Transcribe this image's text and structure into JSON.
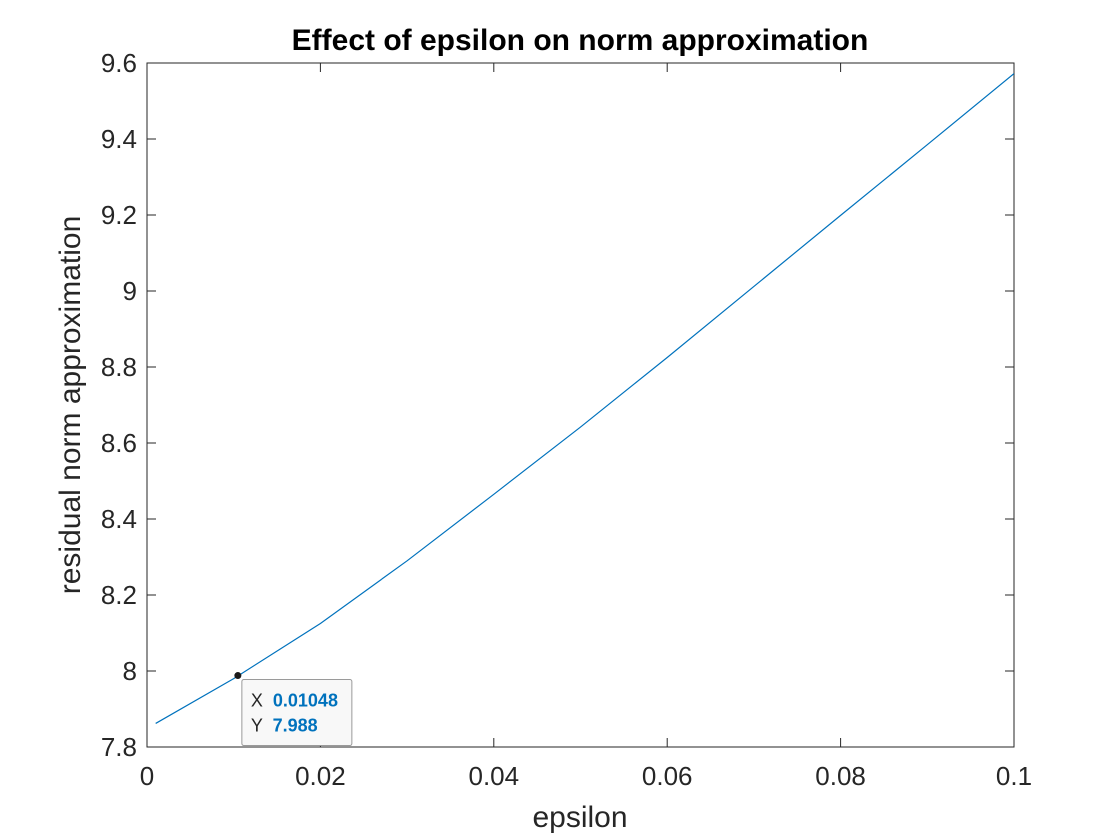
{
  "chart_data": {
    "type": "line",
    "title": "Effect of epsilon on norm approximation",
    "xlabel": "epsilon",
    "ylabel": "residual norm approximation",
    "xlim": [
      0,
      0.1
    ],
    "ylim": [
      7.8,
      9.6
    ],
    "xticks": [
      0,
      0.02,
      0.04,
      0.06,
      0.08,
      0.1
    ],
    "xtick_labels": [
      "0",
      "0.02",
      "0.04",
      "0.06",
      "0.08",
      "0.1"
    ],
    "yticks": [
      7.8,
      8.0,
      8.2,
      8.4,
      8.6,
      8.8,
      9.0,
      9.2,
      9.4,
      9.6
    ],
    "ytick_labels": [
      "7.8",
      "8",
      "8.2",
      "8.4",
      "8.6",
      "8.8",
      "9",
      "9.2",
      "9.4",
      "9.6"
    ],
    "grid": false,
    "line_color": "#0072BD",
    "series": [
      {
        "x": [
          0.001,
          0.01,
          0.02,
          0.03,
          0.04,
          0.05,
          0.06,
          0.07,
          0.08,
          0.09,
          0.1
        ],
        "y": [
          7.862,
          7.98,
          8.125,
          8.29,
          8.465,
          8.642,
          8.825,
          9.012,
          9.199,
          9.385,
          9.572
        ]
      }
    ],
    "datatip": {
      "x": 0.01048,
      "y": 7.988,
      "x_prefix": "X",
      "y_prefix": "Y",
      "x_text": "0.01048",
      "y_text": "7.988",
      "value_color": "#0072BD"
    }
  }
}
